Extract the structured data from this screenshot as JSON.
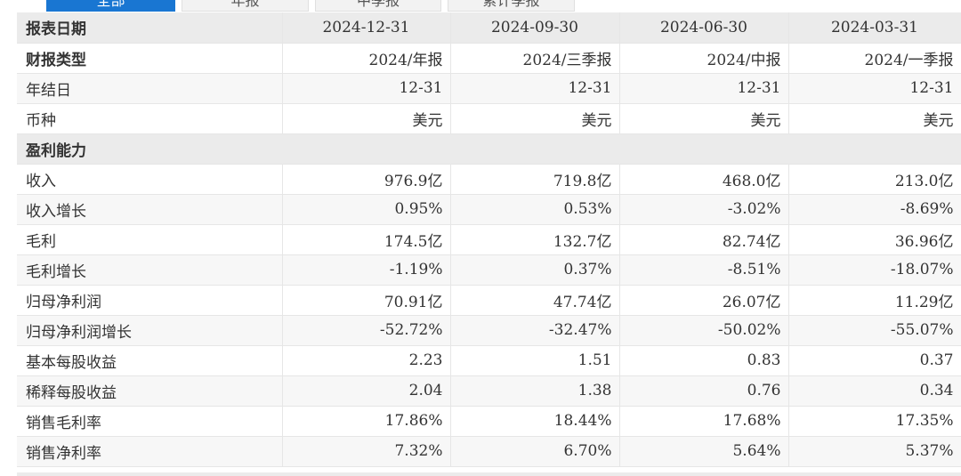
{
  "tabs": [
    {
      "label": "全部",
      "active": true
    },
    {
      "label": "年报",
      "active": false
    },
    {
      "label": "中季报",
      "active": false
    },
    {
      "label": "累计季报",
      "active": false
    }
  ],
  "header": {
    "label": "报表日期",
    "dates": [
      "2024-12-31",
      "2024-09-30",
      "2024-06-30",
      "2024-03-31"
    ]
  },
  "info_rows": [
    {
      "label": "财报类型",
      "values": [
        "2024/年报",
        "2024/三季报",
        "2024/中报",
        "2024/一季报"
      ]
    },
    {
      "label": "年结日",
      "values": [
        "12-31",
        "12-31",
        "12-31",
        "12-31"
      ]
    },
    {
      "label": "币种",
      "values": [
        "美元",
        "美元",
        "美元",
        "美元"
      ]
    }
  ],
  "section_title": "盈利能力",
  "data_rows": [
    {
      "label": "收入",
      "values": [
        "976.9亿",
        "719.8亿",
        "468.0亿",
        "213.0亿"
      ]
    },
    {
      "label": "收入增长",
      "values": [
        "0.95%",
        "0.53%",
        "-3.02%",
        "-8.69%"
      ]
    },
    {
      "label": "毛利",
      "values": [
        "174.5亿",
        "132.7亿",
        "82.74亿",
        "36.96亿"
      ]
    },
    {
      "label": "毛利增长",
      "values": [
        "-1.19%",
        "0.37%",
        "-8.51%",
        "-18.07%"
      ]
    },
    {
      "label": "归母净利润",
      "values": [
        "70.91亿",
        "47.74亿",
        "26.07亿",
        "11.29亿"
      ]
    },
    {
      "label": "归母净利润增长",
      "values": [
        "-52.72%",
        "-32.47%",
        "-50.02%",
        "-55.07%"
      ]
    },
    {
      "label": "基本每股收益",
      "values": [
        "2.23",
        "1.51",
        "0.83",
        "0.37"
      ]
    },
    {
      "label": "稀释每股收益",
      "values": [
        "2.04",
        "1.38",
        "0.76",
        "0.34"
      ]
    },
    {
      "label": "销售毛利率",
      "values": [
        "17.86%",
        "18.44%",
        "17.68%",
        "17.35%"
      ]
    },
    {
      "label": "销售净利率",
      "values": [
        "7.32%",
        "6.70%",
        "5.64%",
        "5.37%"
      ]
    }
  ],
  "colors": {
    "accent": "#1976d2",
    "header_bg": "#ebebeb",
    "stripe_bg": "#f7f7f7",
    "grid": "#e6e6e6"
  }
}
